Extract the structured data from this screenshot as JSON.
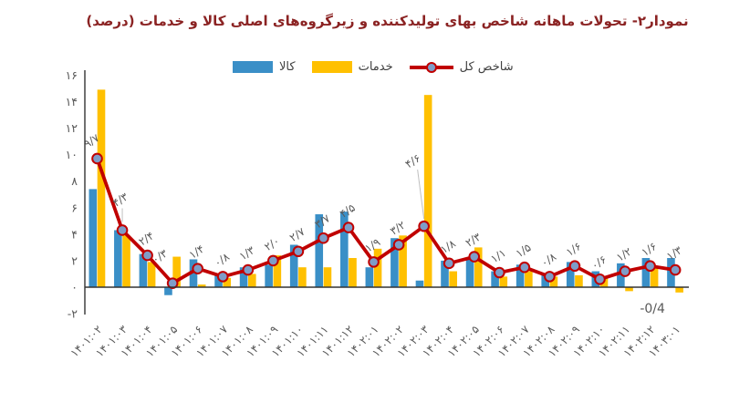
{
  "title": "نمودار۲- تحولات ماهانه شاخص بهای تولیدکننده و زیرگروه‌های اصلی کالا و خدمات (درصد)",
  "legend": [
    {
      "label": "کالا",
      "type": "bar",
      "color": "#3a8fc7"
    },
    {
      "label": "خدمات",
      "type": "bar",
      "color": "#ffc000"
    },
    {
      "label": "شاخص کل",
      "type": "line",
      "color": "#c00000",
      "marker_fill": "#7e9dc8"
    }
  ],
  "chart_data": {
    "type": "bar",
    "subtype": "grouped bars with overlaid line",
    "title": "نمودار۲- تحولات ماهانه شاخص بهای تولیدکننده و زیرگروه‌های اصلی کالا و خدمات (درصد)",
    "xlabel": "",
    "ylabel": "",
    "ylim": [
      -2,
      16
    ],
    "grid": false,
    "legend_position": "top",
    "categories": [
      "۱۴۰۱:۰۲",
      "۱۴۰۱:۰۳",
      "۱۴۰۱:۰۴",
      "۱۴۰۱:۰۵",
      "۱۴۰۱:۰۶",
      "۱۴۰۱:۰۷",
      "۱۴۰۱:۰۸",
      "۱۴۰۱:۰۹",
      "۱۴۰۱:۱۰",
      "۱۴۰۱:۱۱",
      "۱۴۰۱:۱۲",
      "۱۴۰۲:۰۱",
      "۱۴۰۲:۰۲",
      "۱۴۰۲:۰۳",
      "۱۴۰۲:۰۴",
      "۱۴۰۲:۰۵",
      "۱۴۰۲:۰۶",
      "۱۴۰۲:۰۷",
      "۱۴۰۲:۰۸",
      "۱۴۰۲:۰۹",
      "۱۴۰۲:۱۰",
      "۱۴۰۲:۱۱",
      "۱۴۰۲:۱۲",
      "۱۴۰۳:۰۱"
    ],
    "series": [
      {
        "name": "کالا",
        "type": "bar",
        "color": "#3a8fc7",
        "values": [
          7.4,
          4.3,
          2.5,
          -0.6,
          2.1,
          0.9,
          1.5,
          1.7,
          3.2,
          5.5,
          5.7,
          1.5,
          3.7,
          0.5,
          2.0,
          2.2,
          1.2,
          1.7,
          0.9,
          1.9,
          1.2,
          1.8,
          2.2,
          2.2
        ]
      },
      {
        "name": "خدمات",
        "type": "bar",
        "color": "#ffc000",
        "values": [
          14.9,
          3.9,
          1.9,
          2.3,
          0.2,
          0.7,
          1.0,
          2.4,
          1.5,
          1.5,
          2.2,
          2.9,
          3.9,
          14.5,
          1.2,
          3.0,
          0.8,
          1.2,
          0.8,
          0.9,
          0.7,
          -0.3,
          1.6,
          -0.4
        ]
      },
      {
        "name": "شاخص کل",
        "type": "line",
        "color": "#c00000",
        "marker": "circle",
        "marker_fill": "#7e9dc8",
        "values": [
          9.7,
          4.3,
          2.4,
          0.3,
          1.4,
          0.8,
          1.3,
          2.0,
          2.7,
          3.7,
          4.5,
          1.9,
          3.2,
          4.6,
          1.8,
          2.3,
          1.1,
          1.5,
          0.8,
          1.6,
          0.6,
          1.2,
          1.6,
          1.3
        ],
        "data_labels": [
          "۹/۷",
          "۴/۳",
          "۲/۴",
          "۰/۳",
          "۱/۴",
          "۰/۸",
          "۱/۳",
          "۲/۰",
          "۲/۷",
          "۳/۷",
          "۴/۵",
          "۱/۹",
          "۳/۲",
          "۴/۶",
          "۱/۸",
          "۲/۳",
          "۱/۱",
          "۱/۵",
          "۰/۸",
          "۱/۶",
          "۰/۶",
          "۱/۲",
          "۱/۶",
          "۱/۳"
        ]
      }
    ],
    "y_ticks": {
      "values": [
        16,
        14,
        12,
        10,
        8,
        6,
        4,
        2,
        0,
        -2
      ],
      "labels": [
        "۱۶",
        "۱۴",
        "۱۲",
        "۱۰",
        "۸",
        "۶",
        "۴",
        "۲",
        "۰",
        "-۲"
      ]
    },
    "annotations": [
      {
        "text": "-0/4",
        "series": "خدمات",
        "category_index": 23,
        "value": -0.4
      }
    ]
  }
}
